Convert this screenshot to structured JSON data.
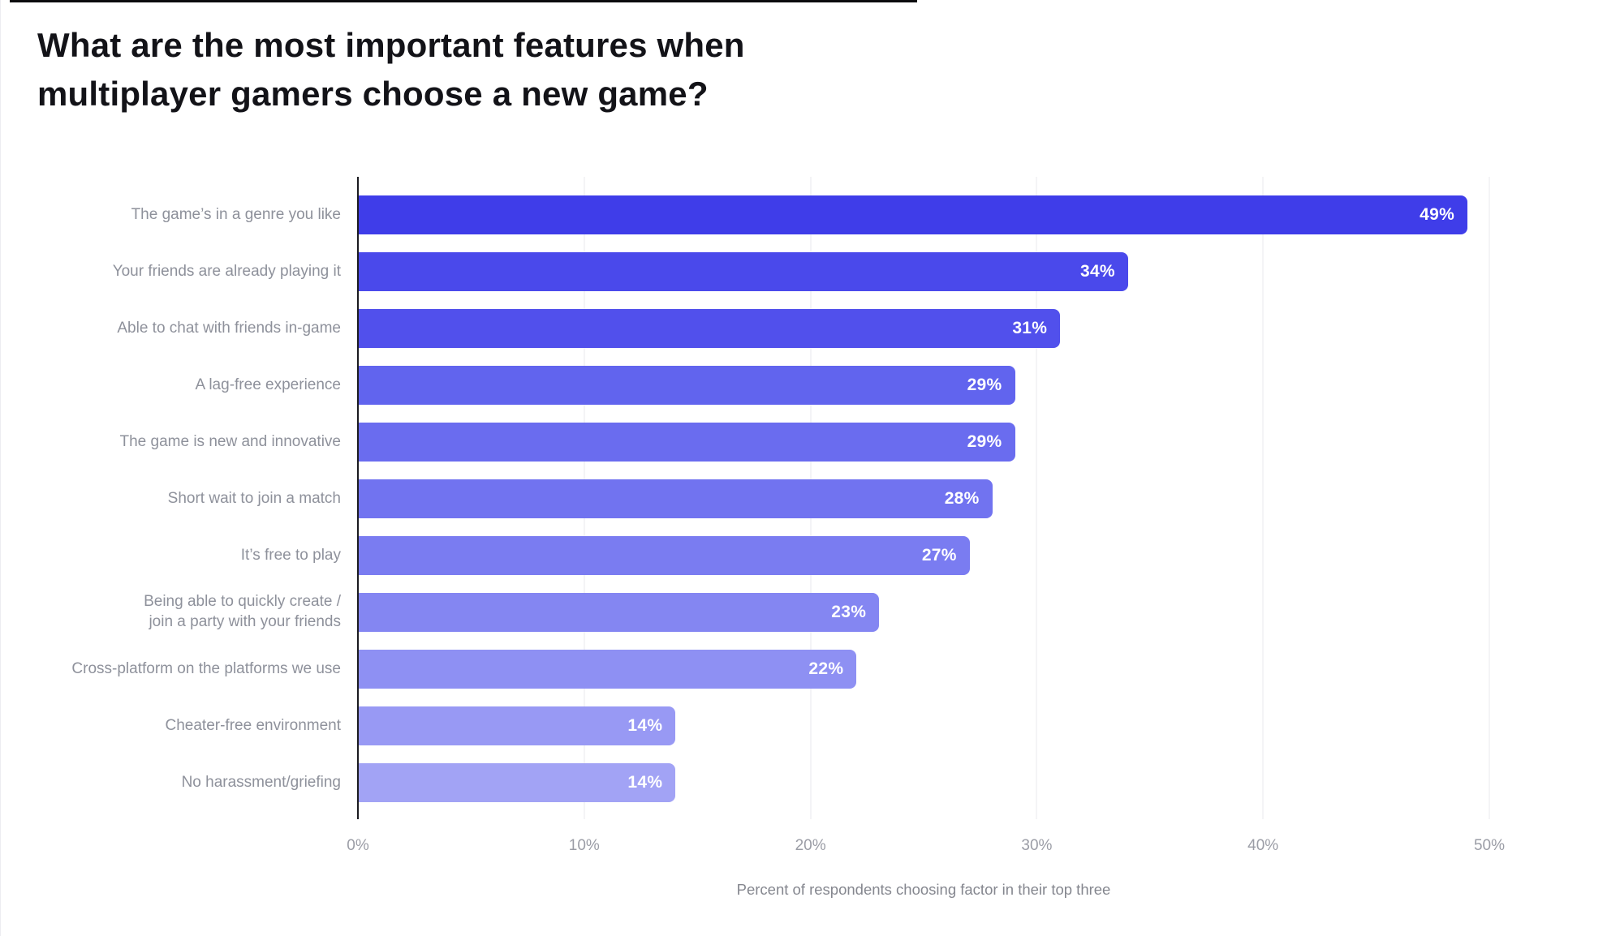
{
  "title": "What are the most important features when\nmultiplayer gamers choose a new game?",
  "chart_data": {
    "type": "bar",
    "orientation": "horizontal",
    "title": "What are the most important features when multiplayer gamers choose a new game?",
    "categories": [
      "The game’s in a genre you like",
      "Your friends are already playing it",
      "Able to chat with friends in-game",
      "A lag-free experience",
      "The game is new and innovative",
      "Short wait to join a match",
      "It’s free to play",
      "Being able to quickly create /\njoin a party with your friends",
      "Cross-platform on the platforms we use",
      "Cheater-free environment",
      "No harassment/griefing"
    ],
    "values": [
      49,
      34,
      31,
      29,
      29,
      28,
      27,
      23,
      22,
      14,
      14
    ],
    "value_labels": [
      "49%",
      "34%",
      "31%",
      "29%",
      "29%",
      "28%",
      "27%",
      "23%",
      "22%",
      "14%",
      "14%"
    ],
    "bar_colors": [
      "#3f3de9",
      "#4a49eb",
      "#5150ec",
      "#6164ee",
      "#6a6cef",
      "#7173f0",
      "#7a7cf1",
      "#8486f2",
      "#8e90f3",
      "#9899f4",
      "#a2a3f5"
    ],
    "xlabel": "Percent of respondents choosing factor in their top three",
    "x_ticks": [
      "0%",
      "10%",
      "20%",
      "30%",
      "40%",
      "50%"
    ],
    "xlim": [
      0,
      50
    ],
    "grid": true,
    "legend": false,
    "value_label_color": "#ffffff",
    "category_label_color": "#8e919b",
    "axis_line_color": "#1b1b20",
    "gridline_color": "#e8e8ec"
  }
}
